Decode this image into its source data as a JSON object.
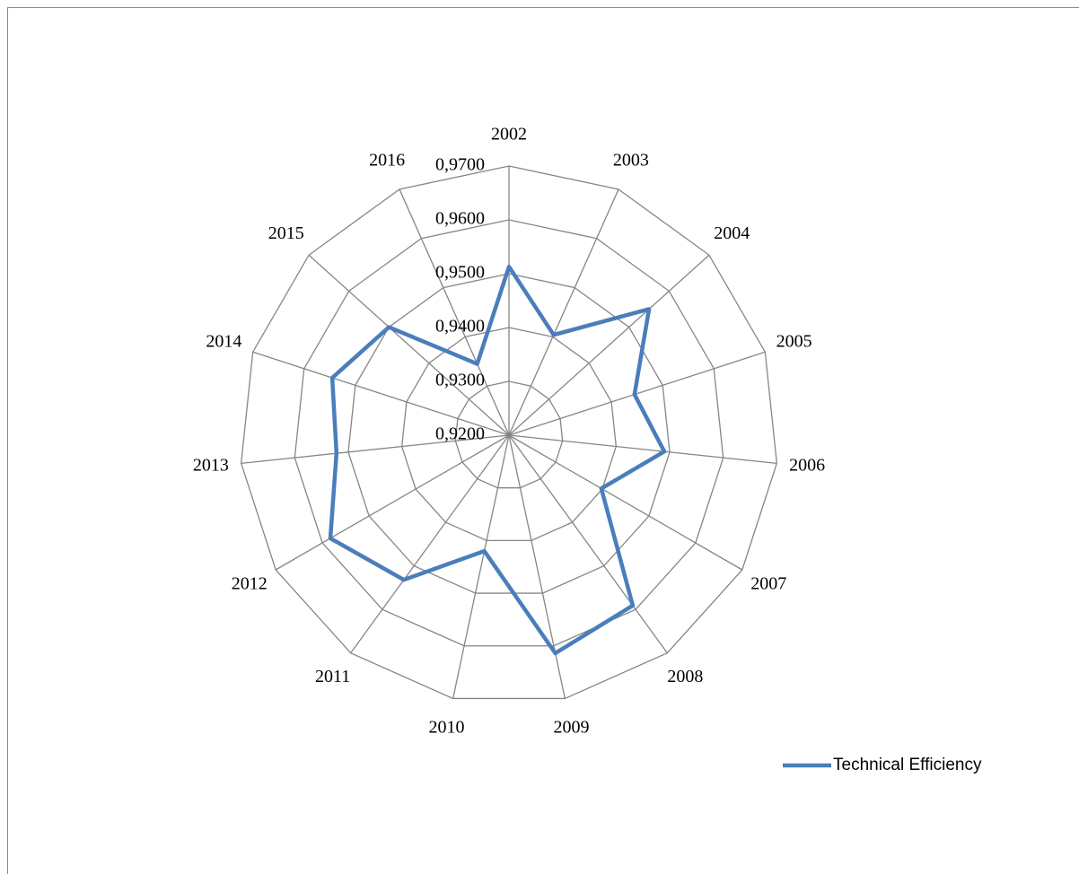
{
  "chart_data": {
    "type": "radar",
    "categories": [
      "2002",
      "2003",
      "2004",
      "2005",
      "2006",
      "2007",
      "2008",
      "2009",
      "2010",
      "2011",
      "2012",
      "2013",
      "2014",
      "2015",
      "2016"
    ],
    "series": [
      {
        "name": "Technical Efficiency",
        "color": "#4a7ebb",
        "values": [
          0.9513,
          0.9404,
          0.955,
          0.9445,
          0.949,
          0.9398,
          0.9591,
          0.9614,
          0.942,
          0.9532,
          0.9583,
          0.9522,
          0.9545,
          0.95,
          0.9345
        ]
      }
    ],
    "ylim": [
      0.92,
      0.97
    ],
    "yticks": [
      {
        "value": 0.92,
        "label": "0,9200"
      },
      {
        "value": 0.93,
        "label": "0,9300"
      },
      {
        "value": 0.94,
        "label": "0,9400"
      },
      {
        "value": 0.95,
        "label": "0,9500"
      },
      {
        "value": 0.96,
        "label": "0,9600"
      },
      {
        "value": 0.97,
        "label": "0,9700"
      }
    ],
    "grid": true,
    "legend": "bottom-right"
  }
}
